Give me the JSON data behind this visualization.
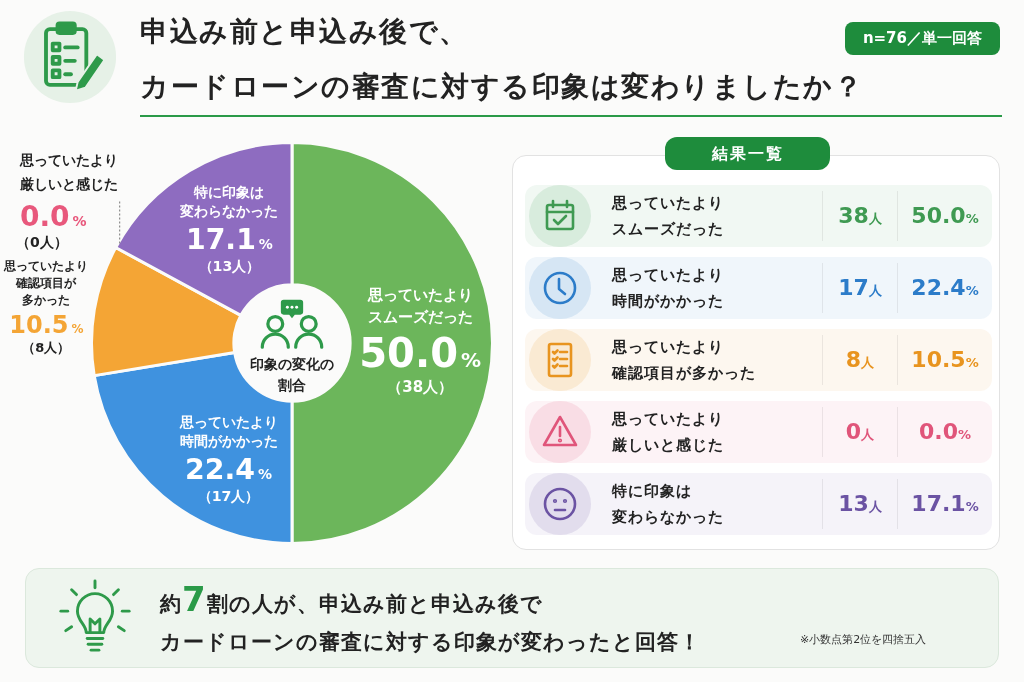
{
  "chart_data": [
    {
      "type": "donut",
      "title": "申込み前と申込み後で、カードローンの審査に対する印象は変わりましたか？",
      "categories": [
        "思っていたよりスムーズだった",
        "思っていたより時間がかかった",
        "思っていたより確認項目が多かった",
        "思っていたより厳しいと感じた",
        "特に印象は変わらなかった"
      ],
      "values": [
        50.0,
        22.4,
        10.5,
        0.0,
        17.1
      ],
      "colors": [
        "#6cb65b",
        "#3f92df",
        "#f4a535",
        "#e8587c",
        "#8e6cc0"
      ],
      "value_labels": [
        "50.0%",
        "22.4%",
        "10.5%",
        "0.0%",
        "17.1%"
      ],
      "annotations": [
        {
          "text": "（38人）",
          "x": "思っていたよりスムーズだった"
        },
        {
          "text": "（17人）",
          "x": "思っていたより時間がかかった"
        },
        {
          "text": "（8人）",
          "x": "思っていたより確認項目が多かった"
        },
        {
          "text": "（0人）",
          "x": "思っていたより厳しいと感じた"
        },
        {
          "text": "（13人）",
          "x": "特に印象は変わらなかった"
        },
        "印象の変化の割合",
        "約7割の人が、申込み前と申込み後でカードローンの審査に対する印象が変わったと回答！",
        "※小数点第2位を四捨五入"
      ]
    },
    {
      "type": "other",
      "title": "結果一覧",
      "subtitle": "n=76／単一回答",
      "colors": [
        "#3f9a52",
        "#2c7cc9",
        "#e8941f",
        "#e0557a",
        "#6b53a3"
      ],
      "annotations": [
        "思っていたよりスムーズだった",
        "38人",
        "50.0%",
        "思っていたより時間がかかった",
        "17人",
        "22.4%",
        "思っていたより確認項目が多かった",
        "8人",
        "10.5%",
        "思っていたより厳しいと感じた",
        "0人",
        "0.0%",
        "特に印象は変わらなかった",
        "13人",
        "17.1%"
      ]
    }
  ]
}
